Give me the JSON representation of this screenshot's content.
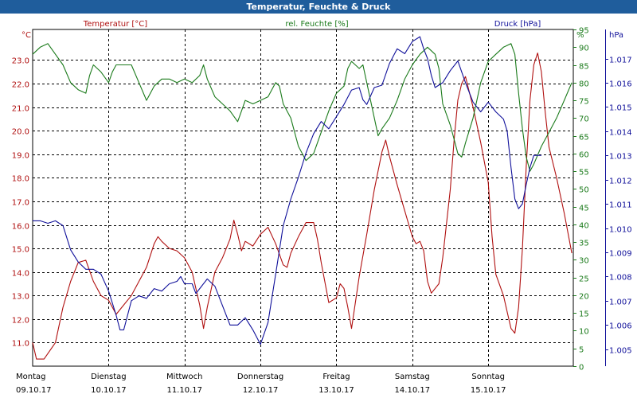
{
  "window": {
    "title": "Temperatur, Feuchte & Druck"
  },
  "colors": {
    "temperature": "#b01010",
    "humidity": "#1a7a1a",
    "pressure": "#10109a",
    "titlebar": "#1f5d9c",
    "grid": "#000000"
  },
  "chart_data": {
    "type": "line",
    "title": "Temperatur, Feuchte & Druck",
    "grid": true,
    "x_axis": {
      "days": [
        {
          "weekday": "Montag",
          "date": "09.10.17"
        },
        {
          "weekday": "Dienstag",
          "date": "10.10.17"
        },
        {
          "weekday": "Mittwoch",
          "date": "11.10.17"
        },
        {
          "weekday": "Donnerstag",
          "date": "12.10.17"
        },
        {
          "weekday": "Freitag",
          "date": "13.10.17"
        },
        {
          "weekday": "Samstag",
          "date": "14.10.17"
        },
        {
          "weekday": "Sonntag",
          "date": "15.10.17"
        }
      ],
      "range_days": [
        0,
        7.12
      ]
    },
    "axes": {
      "temperature": {
        "label": "Temperatur [°C]",
        "unit": "°C",
        "range": [
          10.0,
          24.3
        ],
        "ticks": [
          "11.0",
          "12.0",
          "13.0",
          "14.0",
          "15.0",
          "16.0",
          "17.0",
          "18.0",
          "19.0",
          "20.0",
          "21.0",
          "22.0",
          "23.0"
        ]
      },
      "humidity": {
        "label": "rel. Feuchte [%]",
        "unit": "%",
        "range": [
          0,
          95
        ],
        "ticks": [
          "0",
          "5",
          "10",
          "15",
          "20",
          "25",
          "30",
          "35",
          "40",
          "45",
          "50",
          "55",
          "60",
          "65",
          "70",
          "75",
          "80",
          "85",
          "90",
          "95"
        ]
      },
      "pressure": {
        "label": "Druck [hPa]",
        "unit": "hPa",
        "range": [
          1.0043,
          1.0182
        ],
        "ticks": [
          "1.005",
          "1.006",
          "1.007",
          "1.008",
          "1.009",
          "1.010",
          "1.011",
          "1.012",
          "1.013",
          "1.014",
          "1.015",
          "1.016",
          "1.017"
        ]
      }
    },
    "series": [
      {
        "name": "Temperatur [°C]",
        "axis": "temperature",
        "points": [
          [
            0.0,
            11.0
          ],
          [
            0.05,
            10.3
          ],
          [
            0.15,
            10.3
          ],
          [
            0.3,
            11.0
          ],
          [
            0.4,
            12.5
          ],
          [
            0.5,
            13.6
          ],
          [
            0.6,
            14.4
          ],
          [
            0.7,
            14.5
          ],
          [
            0.8,
            13.6
          ],
          [
            0.9,
            13.0
          ],
          [
            1.0,
            12.8
          ],
          [
            1.1,
            12.2
          ],
          [
            1.2,
            12.6
          ],
          [
            1.3,
            13.0
          ],
          [
            1.4,
            13.6
          ],
          [
            1.5,
            14.2
          ],
          [
            1.6,
            15.2
          ],
          [
            1.65,
            15.5
          ],
          [
            1.7,
            15.3
          ],
          [
            1.8,
            15.0
          ],
          [
            1.9,
            14.9
          ],
          [
            2.0,
            14.6
          ],
          [
            2.1,
            14.0
          ],
          [
            2.15,
            13.3
          ],
          [
            2.2,
            12.6
          ],
          [
            2.25,
            11.6
          ],
          [
            2.3,
            12.5
          ],
          [
            2.4,
            14.0
          ],
          [
            2.5,
            14.6
          ],
          [
            2.6,
            15.4
          ],
          [
            2.65,
            16.2
          ],
          [
            2.7,
            15.6
          ],
          [
            2.75,
            14.9
          ],
          [
            2.8,
            15.3
          ],
          [
            2.9,
            15.1
          ],
          [
            3.0,
            15.6
          ],
          [
            3.1,
            15.9
          ],
          [
            3.2,
            15.2
          ],
          [
            3.3,
            14.3
          ],
          [
            3.35,
            14.2
          ],
          [
            3.4,
            14.8
          ],
          [
            3.5,
            15.5
          ],
          [
            3.6,
            16.1
          ],
          [
            3.7,
            16.1
          ],
          [
            3.75,
            15.4
          ],
          [
            3.8,
            14.4
          ],
          [
            3.9,
            12.7
          ],
          [
            4.0,
            12.9
          ],
          [
            4.05,
            13.5
          ],
          [
            4.1,
            13.3
          ],
          [
            4.15,
            12.5
          ],
          [
            4.2,
            11.6
          ],
          [
            4.3,
            13.8
          ],
          [
            4.4,
            15.6
          ],
          [
            4.5,
            17.5
          ],
          [
            4.6,
            19.1
          ],
          [
            4.65,
            19.6
          ],
          [
            4.7,
            18.9
          ],
          [
            4.8,
            17.7
          ],
          [
            4.9,
            16.6
          ],
          [
            5.0,
            15.5
          ],
          [
            5.05,
            15.2
          ],
          [
            5.1,
            15.3
          ],
          [
            5.15,
            14.9
          ],
          [
            5.2,
            13.6
          ],
          [
            5.25,
            13.1
          ],
          [
            5.35,
            13.5
          ],
          [
            5.4,
            14.6
          ],
          [
            5.5,
            17.5
          ],
          [
            5.55,
            19.6
          ],
          [
            5.6,
            21.3
          ],
          [
            5.65,
            22.0
          ],
          [
            5.7,
            22.3
          ],
          [
            5.8,
            21.0
          ],
          [
            5.9,
            19.5
          ],
          [
            6.0,
            17.8
          ],
          [
            6.05,
            15.5
          ],
          [
            6.1,
            13.9
          ],
          [
            6.2,
            13.0
          ],
          [
            6.25,
            12.3
          ],
          [
            6.3,
            11.6
          ],
          [
            6.35,
            11.4
          ],
          [
            6.4,
            12.5
          ],
          [
            6.45,
            15.0
          ],
          [
            6.5,
            18.5
          ],
          [
            6.55,
            21.3
          ],
          [
            6.6,
            22.8
          ],
          [
            6.65,
            23.3
          ],
          [
            6.7,
            22.5
          ],
          [
            6.75,
            20.8
          ],
          [
            6.8,
            19.3
          ],
          [
            6.9,
            18.0
          ],
          [
            7.0,
            16.5
          ],
          [
            7.1,
            14.8
          ]
        ]
      },
      {
        "name": "rel. Feuchte [%]",
        "axis": "humidity",
        "points": [
          [
            0.0,
            88
          ],
          [
            0.1,
            90
          ],
          [
            0.2,
            91
          ],
          [
            0.3,
            88
          ],
          [
            0.4,
            85
          ],
          [
            0.5,
            80
          ],
          [
            0.6,
            78
          ],
          [
            0.7,
            77
          ],
          [
            0.75,
            82
          ],
          [
            0.8,
            85
          ],
          [
            0.9,
            83
          ],
          [
            1.0,
            80
          ],
          [
            1.05,
            83
          ],
          [
            1.1,
            85
          ],
          [
            1.2,
            85
          ],
          [
            1.3,
            85
          ],
          [
            1.4,
            80
          ],
          [
            1.5,
            75
          ],
          [
            1.6,
            79
          ],
          [
            1.7,
            81
          ],
          [
            1.8,
            81
          ],
          [
            1.9,
            80
          ],
          [
            2.0,
            81
          ],
          [
            2.1,
            80
          ],
          [
            2.2,
            82
          ],
          [
            2.25,
            85
          ],
          [
            2.3,
            81
          ],
          [
            2.4,
            76
          ],
          [
            2.5,
            74
          ],
          [
            2.6,
            72
          ],
          [
            2.7,
            69
          ],
          [
            2.75,
            72
          ],
          [
            2.8,
            75
          ],
          [
            2.9,
            74
          ],
          [
            3.0,
            75
          ],
          [
            3.1,
            76
          ],
          [
            3.2,
            80
          ],
          [
            3.25,
            79
          ],
          [
            3.3,
            74
          ],
          [
            3.4,
            70
          ],
          [
            3.5,
            62
          ],
          [
            3.6,
            58
          ],
          [
            3.7,
            60
          ],
          [
            3.8,
            66
          ],
          [
            3.9,
            72
          ],
          [
            4.0,
            77
          ],
          [
            4.1,
            79
          ],
          [
            4.15,
            84
          ],
          [
            4.2,
            86
          ],
          [
            4.3,
            84
          ],
          [
            4.35,
            85
          ],
          [
            4.4,
            80
          ],
          [
            4.5,
            70
          ],
          [
            4.55,
            65
          ],
          [
            4.6,
            67
          ],
          [
            4.7,
            70
          ],
          [
            4.8,
            75
          ],
          [
            4.9,
            81
          ],
          [
            5.0,
            85
          ],
          [
            5.1,
            88
          ],
          [
            5.2,
            90
          ],
          [
            5.3,
            88
          ],
          [
            5.35,
            84
          ],
          [
            5.4,
            74
          ],
          [
            5.5,
            68
          ],
          [
            5.55,
            64
          ],
          [
            5.6,
            60
          ],
          [
            5.65,
            59
          ],
          [
            5.7,
            63
          ],
          [
            5.8,
            70
          ],
          [
            5.9,
            80
          ],
          [
            6.0,
            86
          ],
          [
            6.1,
            88
          ],
          [
            6.2,
            90
          ],
          [
            6.3,
            91
          ],
          [
            6.35,
            88
          ],
          [
            6.4,
            77
          ],
          [
            6.45,
            67
          ],
          [
            6.5,
            59
          ],
          [
            6.55,
            55
          ],
          [
            6.6,
            57
          ],
          [
            6.7,
            62
          ],
          [
            6.8,
            66
          ],
          [
            6.9,
            70
          ],
          [
            7.0,
            75
          ],
          [
            7.1,
            80
          ]
        ]
      },
      {
        "name": "Druck [hPa]",
        "axis": "pressure",
        "points": [
          [
            0.0,
            1.0103
          ],
          [
            0.1,
            1.0103
          ],
          [
            0.2,
            1.0102
          ],
          [
            0.3,
            1.0103
          ],
          [
            0.4,
            1.0101
          ],
          [
            0.45,
            1.0096
          ],
          [
            0.5,
            1.0091
          ],
          [
            0.6,
            1.0086
          ],
          [
            0.7,
            1.0083
          ],
          [
            0.8,
            1.0083
          ],
          [
            0.9,
            1.0081
          ],
          [
            1.0,
            1.0074
          ],
          [
            1.1,
            1.0064
          ],
          [
            1.15,
            1.0058
          ],
          [
            1.2,
            1.0058
          ],
          [
            1.25,
            1.0064
          ],
          [
            1.3,
            1.007
          ],
          [
            1.4,
            1.0072
          ],
          [
            1.5,
            1.0071
          ],
          [
            1.6,
            1.0075
          ],
          [
            1.7,
            1.0074
          ],
          [
            1.8,
            1.0077
          ],
          [
            1.9,
            1.0078
          ],
          [
            1.95,
            1.008
          ],
          [
            2.0,
            1.0077
          ],
          [
            2.1,
            1.0077
          ],
          [
            2.15,
            1.0073
          ],
          [
            2.2,
            1.0075
          ],
          [
            2.3,
            1.0079
          ],
          [
            2.4,
            1.0076
          ],
          [
            2.5,
            1.0068
          ],
          [
            2.6,
            1.006
          ],
          [
            2.7,
            1.006
          ],
          [
            2.8,
            1.0063
          ],
          [
            2.9,
            1.0058
          ],
          [
            3.0,
            1.0052
          ],
          [
            3.1,
            1.0061
          ],
          [
            3.2,
            1.0081
          ],
          [
            3.3,
            1.0101
          ],
          [
            3.4,
            1.0112
          ],
          [
            3.5,
            1.0121
          ],
          [
            3.6,
            1.0131
          ],
          [
            3.7,
            1.0139
          ],
          [
            3.8,
            1.0144
          ],
          [
            3.9,
            1.0141
          ],
          [
            4.0,
            1.0146
          ],
          [
            4.1,
            1.0151
          ],
          [
            4.2,
            1.0157
          ],
          [
            4.3,
            1.0158
          ],
          [
            4.35,
            1.0153
          ],
          [
            4.4,
            1.0151
          ],
          [
            4.5,
            1.0158
          ],
          [
            4.6,
            1.0159
          ],
          [
            4.7,
            1.0168
          ],
          [
            4.8,
            1.0174
          ],
          [
            4.9,
            1.0172
          ],
          [
            5.0,
            1.0177
          ],
          [
            5.1,
            1.0179
          ],
          [
            5.15,
            1.0174
          ],
          [
            5.2,
            1.017
          ],
          [
            5.25,
            1.0163
          ],
          [
            5.3,
            1.0158
          ],
          [
            5.4,
            1.016
          ],
          [
            5.5,
            1.0165
          ],
          [
            5.6,
            1.0169
          ],
          [
            5.7,
            1.016
          ],
          [
            5.8,
            1.0152
          ],
          [
            5.9,
            1.0148
          ],
          [
            6.0,
            1.0152
          ],
          [
            6.1,
            1.0148
          ],
          [
            6.2,
            1.0145
          ],
          [
            6.25,
            1.014
          ],
          [
            6.3,
            1.0125
          ],
          [
            6.35,
            1.0112
          ],
          [
            6.4,
            1.0108
          ],
          [
            6.45,
            1.011
          ],
          [
            6.5,
            1.0118
          ],
          [
            6.55,
            1.0125
          ],
          [
            6.6,
            1.013
          ],
          [
            6.7,
            1.013
          ]
        ]
      }
    ]
  }
}
